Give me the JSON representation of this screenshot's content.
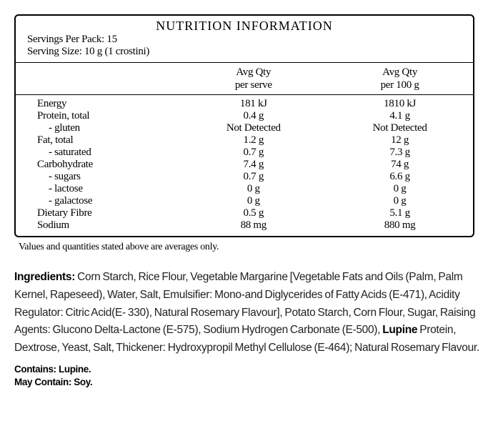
{
  "heading": "NUTRITION INFORMATION",
  "servingsPerPack": "Servings Per Pack: 15",
  "servingSize": "Serving Size: 10 g (1 crostini)",
  "columnHead": {
    "name": "",
    "serve1": "Avg Qty",
    "serve2": "per serve",
    "per100a": "Avg Qty",
    "per100b": "per 100 g"
  },
  "rows": [
    {
      "name": "Energy",
      "serve": "181 kJ",
      "per100": "1810 kJ",
      "indent": false
    },
    {
      "name": "Protein, total",
      "serve": "0.4 g",
      "per100": "4.1 g",
      "indent": false
    },
    {
      "name": "- gluten",
      "serve": "Not Detected",
      "per100": "Not Detected",
      "indent": true
    },
    {
      "name": "Fat, total",
      "serve": "1.2 g",
      "per100": "12 g",
      "indent": false
    },
    {
      "name": "- saturated",
      "serve": "0.7 g",
      "per100": "7.3 g",
      "indent": true
    },
    {
      "name": "Carbohydrate",
      "serve": "7.4 g",
      "per100": "74 g",
      "indent": false
    },
    {
      "name": "- sugars",
      "serve": "0.7 g",
      "per100": "6.6 g",
      "indent": true
    },
    {
      "name": "- lactose",
      "serve": "0 g",
      "per100": "0 g",
      "indent": true
    },
    {
      "name": "- galactose",
      "serve": "0 g",
      "per100": "0 g",
      "indent": true
    },
    {
      "name": "Dietary Fibre",
      "serve": "0.5 g",
      "per100": "5.1 g",
      "indent": false
    },
    {
      "name": "Sodium",
      "serve": "88 mg",
      "per100": "880 mg",
      "indent": false
    }
  ],
  "note": "Values and quantities stated above are averages only.",
  "ingredients": {
    "labelBold": "Ingredients: ",
    "part1": "Corn Starch, Rice Flour, Vegetable Margarine [Vegetable Fats and Oils (Palm, Palm Kernel, Rapeseed), Water, Salt, Emulsifier: Mono-and Diglycerides of Fatty Acids (E-471), Acidity Regulator: Citric Acid(E- 330), Natural Rosemary Flavour], Potato Starch, Corn Flour, Sugar, Raising Agents: Glucono Delta-Lactone (E-575), Sodium Hydrogen Carbonate (E-500), ",
    "lupineBold": "Lupine",
    "part2": " Protein, Dextrose, Yeast, Salt, Thickener: Hydroxypropil Methyl Cellulose (E-464); Natural Rosemary Flavour."
  },
  "contains": "Contains: Lupine.",
  "mayContain": "May Contain: Soy."
}
